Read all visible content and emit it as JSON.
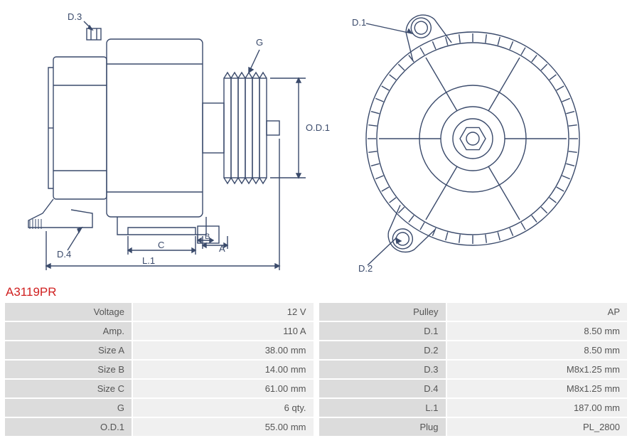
{
  "part_number": "A3119PR",
  "diagram": {
    "stroke": "#3a4a6b",
    "stroke_width": 1.4,
    "label_font": "13px Arial",
    "labels": {
      "D3": "D.3",
      "D4": "D.4",
      "G": "G",
      "OD1": "O.D.1",
      "A": "A",
      "B": "B",
      "C": "C",
      "L1": "L.1",
      "D1": "D.1",
      "D2": "D.2"
    }
  },
  "specs_left": [
    {
      "label": "Voltage",
      "value": "12 V"
    },
    {
      "label": "Amp.",
      "value": "110 A"
    },
    {
      "label": "Size A",
      "value": "38.00 mm"
    },
    {
      "label": "Size B",
      "value": "14.00 mm"
    },
    {
      "label": "Size C",
      "value": "61.00 mm"
    },
    {
      "label": "G",
      "value": "6 qty."
    },
    {
      "label": "O.D.1",
      "value": "55.00 mm"
    }
  ],
  "specs_right": [
    {
      "label": "Pulley",
      "value": "AP"
    },
    {
      "label": "D.1",
      "value": "8.50 mm"
    },
    {
      "label": "D.2",
      "value": "8.50 mm"
    },
    {
      "label": "D.3",
      "value": "M8x1.25 mm"
    },
    {
      "label": "D.4",
      "value": "M8x1.25 mm"
    },
    {
      "label": "L.1",
      "value": "187.00 mm"
    },
    {
      "label": "Plug",
      "value": "PL_2800"
    }
  ],
  "colors": {
    "part_number": "#d02020",
    "label_bg": "#dcdcdc",
    "value_bg": "#f0f0f0",
    "text": "#555555"
  }
}
